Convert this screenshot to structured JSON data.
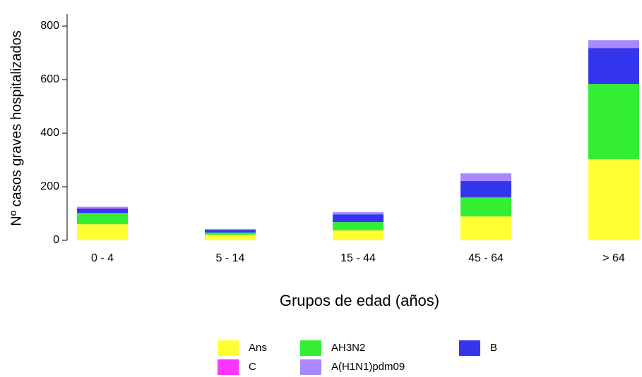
{
  "chart_data": {
    "type": "bar",
    "stacked": true,
    "x_label": "Grupos de edad (años)",
    "y_label": "Nº casos graves hospitalizados",
    "categories": [
      "0 - 4",
      "5 - 14",
      "15 - 44",
      "45 - 64",
      "> 64"
    ],
    "series": [
      {
        "name": "Ans",
        "color": "#ffff33",
        "values": [
          60,
          21,
          37,
          89,
          303
        ]
      },
      {
        "name": "AH3N2",
        "color": "#33ee33",
        "values": [
          42,
          8,
          31,
          71,
          281
        ]
      },
      {
        "name": "B",
        "color": "#3535ee",
        "values": [
          17,
          10,
          29,
          61,
          134
        ]
      },
      {
        "name": "C",
        "color": "#ff33ff",
        "values": [
          1,
          0,
          0,
          0,
          2
        ]
      },
      {
        "name": "A(H1N1)pdm09",
        "color": "#aa88ff",
        "values": [
          5,
          3,
          8,
          29,
          27
        ]
      }
    ],
    "ylim": [
      0,
      800
    ],
    "yticks": [
      0,
      200,
      400,
      600,
      800
    ],
    "grid": false
  }
}
